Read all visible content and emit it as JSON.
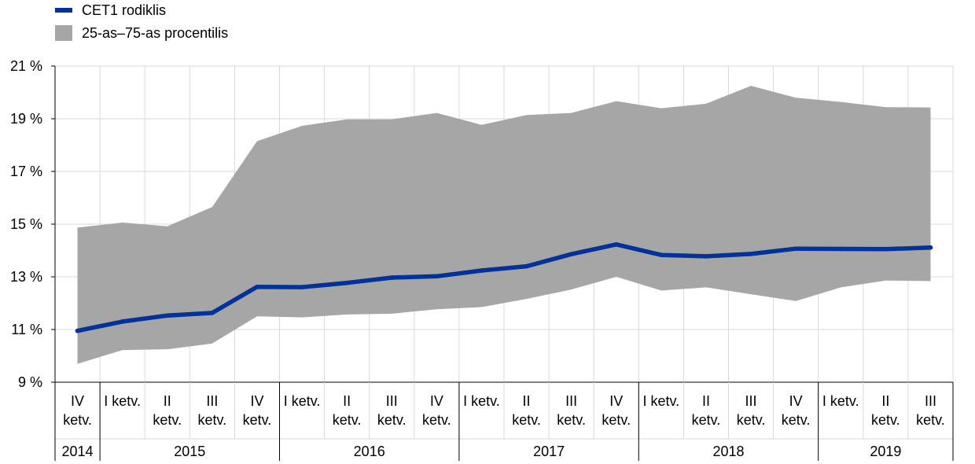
{
  "chart_data": {
    "type": "line",
    "legend": {
      "placement": "top-left",
      "items": [
        {
          "label": "CET1 rodiklis",
          "kind": "line",
          "color": "#003299"
        },
        {
          "label": "25-as–75-as procentilis",
          "kind": "area",
          "color": "#a6a6a6"
        }
      ]
    },
    "y_axis": {
      "min": 9,
      "max": 21,
      "ticks": [
        {
          "value": 21,
          "label": "21 %"
        },
        {
          "value": 19,
          "label": "19 %"
        },
        {
          "value": 17,
          "label": "17 %"
        },
        {
          "value": 15,
          "label": "15 %"
        },
        {
          "value": 13,
          "label": "13 %"
        },
        {
          "value": 11,
          "label": "11 %"
        },
        {
          "value": 9,
          "label": "9 %"
        }
      ],
      "grid": true
    },
    "categories": [
      {
        "q1": "IV",
        "q2": "ketv."
      },
      {
        "q1": "I ketv.",
        "q2": ""
      },
      {
        "q1": "II",
        "q2": "ketv."
      },
      {
        "q1": "III",
        "q2": "ketv."
      },
      {
        "q1": "IV",
        "q2": "ketv."
      },
      {
        "q1": "I ketv.",
        "q2": ""
      },
      {
        "q1": "II",
        "q2": "ketv."
      },
      {
        "q1": "III",
        "q2": "ketv."
      },
      {
        "q1": "IV",
        "q2": "ketv."
      },
      {
        "q1": "I ketv.",
        "q2": ""
      },
      {
        "q1": "II",
        "q2": "ketv."
      },
      {
        "q1": "III",
        "q2": "ketv."
      },
      {
        "q1": "IV",
        "q2": "ketv."
      },
      {
        "q1": "I ketv.",
        "q2": ""
      },
      {
        "q1": "II",
        "q2": "ketv."
      },
      {
        "q1": "III",
        "q2": "ketv."
      },
      {
        "q1": "IV",
        "q2": "ketv."
      },
      {
        "q1": "I ketv.",
        "q2": ""
      },
      {
        "q1": "II",
        "q2": "ketv."
      },
      {
        "q1": "III",
        "q2": "ketv."
      }
    ],
    "years": [
      {
        "label": "2014",
        "start": 0,
        "end": 0
      },
      {
        "label": "2015",
        "start": 1,
        "end": 4
      },
      {
        "label": "2016",
        "start": 5,
        "end": 8
      },
      {
        "label": "2017",
        "start": 9,
        "end": 12
      },
      {
        "label": "2018",
        "start": 13,
        "end": 16
      },
      {
        "label": "2019",
        "start": 17,
        "end": 19
      }
    ],
    "series": [
      {
        "name": "CET1 rodiklis",
        "color": "#003299",
        "values": [
          10.95,
          11.3,
          11.53,
          11.63,
          12.62,
          12.61,
          12.77,
          12.97,
          13.02,
          13.24,
          13.4,
          13.86,
          14.23,
          13.83,
          13.78,
          13.87,
          14.07,
          14.06,
          14.05,
          14.11
        ]
      }
    ],
    "band": {
      "name": "25-as–75-as procentilis",
      "color": "#a6a6a6",
      "lower": [
        9.7,
        10.22,
        10.25,
        10.47,
        11.5,
        11.46,
        11.57,
        11.6,
        11.77,
        11.85,
        12.16,
        12.52,
        13.0,
        12.48,
        12.6,
        12.34,
        12.08,
        12.6,
        12.86,
        12.84
      ],
      "upper": [
        14.87,
        15.06,
        14.92,
        15.65,
        18.15,
        18.73,
        18.98,
        18.98,
        19.22,
        18.77,
        19.14,
        19.22,
        19.67,
        19.4,
        19.57,
        20.25,
        19.8,
        19.64,
        19.44,
        19.43
      ]
    }
  }
}
